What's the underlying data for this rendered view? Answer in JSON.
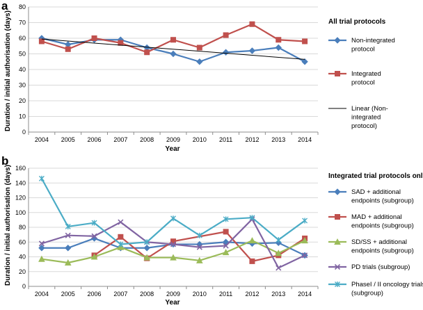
{
  "chart_data": [
    {
      "panel": "a",
      "type": "line",
      "title": "All trial protocols",
      "xlabel": "Year",
      "ylabel": "Duration / initial authorisation (days)",
      "ylim": [
        0,
        80
      ],
      "ytick_step": 10,
      "grid": true,
      "categories": [
        "2004",
        "2005",
        "2006",
        "2007",
        "2008",
        "2009",
        "2010",
        "2011",
        "2012",
        "2013",
        "2014"
      ],
      "series": [
        {
          "name": "Non-integrated protocol",
          "legend_lines": [
            "Non-integrated",
            "protocol"
          ],
          "color": "#4a7ebb",
          "marker": "diamond",
          "values": [
            60,
            56,
            59,
            59,
            54,
            50,
            45,
            51,
            52,
            54,
            45
          ]
        },
        {
          "name": "Integrated protocol",
          "legend_lines": [
            "Integrated",
            "protocol"
          ],
          "color": "#c0504d",
          "marker": "square",
          "values": [
            58,
            53,
            60,
            57,
            51,
            59,
            54,
            62,
            69,
            59,
            58
          ]
        },
        {
          "name": "Linear (Non-integrated protocol)",
          "legend_lines": [
            "Linear (Non-",
            "integrated",
            "protocol)"
          ],
          "color": "#000000",
          "marker": "none",
          "trendline": true,
          "values": [
            59.5,
            58.2,
            56.9,
            55.6,
            54.3,
            53.0,
            51.7,
            50.4,
            49.1,
            47.8,
            46.5
          ]
        }
      ]
    },
    {
      "panel": "b",
      "type": "line",
      "title": "Integrated trial protocols only",
      "xlabel": "Year",
      "ylabel": "Duration / initial authorisation (days)",
      "ylim": [
        0,
        160
      ],
      "ytick_step": 20,
      "grid": true,
      "categories": [
        "2004",
        "2005",
        "2006",
        "2007",
        "2008",
        "2009",
        "2010",
        "2011",
        "2012",
        "2013",
        "2014"
      ],
      "series": [
        {
          "name": "SAD + additional endpoints (subgroup)",
          "legend_lines": [
            "SAD + additional",
            "endpoints (subgroup)"
          ],
          "color": "#4a7ebb",
          "marker": "diamond",
          "values": [
            52,
            52,
            65,
            52,
            52,
            57,
            57,
            60,
            58,
            59,
            42
          ]
        },
        {
          "name": "MAD + additional endpoints (subgroup)",
          "legend_lines": [
            "MAD + additional",
            "endpoints (subgroup)"
          ],
          "color": "#c0504d",
          "marker": "square",
          "values": [
            null,
            null,
            42,
            67,
            38,
            61,
            null,
            74,
            34,
            42,
            65
          ]
        },
        {
          "name": "SD/SS + additional endpoints (subgroup)",
          "legend_lines": [
            "SD/SS + additional",
            "endpoints (subgroup)"
          ],
          "color": "#9bbb59",
          "marker": "triangle",
          "values": [
            37,
            32,
            40,
            53,
            39,
            39,
            35,
            46,
            62,
            45,
            62
          ]
        },
        {
          "name": "PD trials (subgroup)",
          "legend_lines": [
            "PD trials (subgroup)"
          ],
          "color": "#8064a2",
          "marker": "cross",
          "values": [
            58,
            69,
            68,
            87,
            60,
            57,
            53,
            55,
            91,
            25,
            42
          ]
        },
        {
          "name": "PhaseI / II oncology trials (subgroup)",
          "legend_lines": [
            "PhaseI / II oncology trials",
            "(subgroup)"
          ],
          "color": "#4bacc6",
          "marker": "xmark",
          "values": [
            146,
            81,
            86,
            57,
            60,
            92,
            69,
            91,
            93,
            63,
            89
          ]
        }
      ]
    }
  ]
}
